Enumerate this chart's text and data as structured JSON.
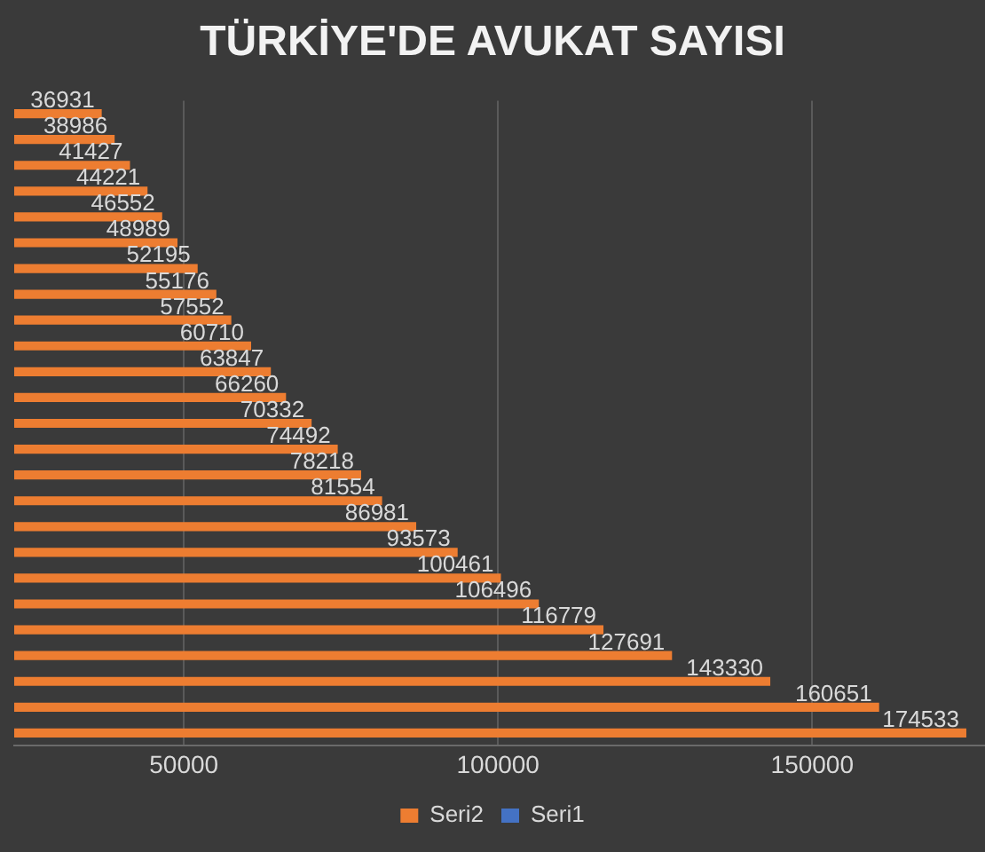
{
  "chart_data": {
    "type": "bar",
    "orientation": "horizontal",
    "title": "TÜRKİYE'DE AVUKAT SAYISI",
    "categories": [
      null,
      null,
      null,
      null,
      null,
      null,
      null,
      null,
      null,
      null,
      null,
      null,
      null,
      null,
      null,
      null,
      null,
      null,
      null,
      null,
      null,
      null,
      null,
      null,
      null
    ],
    "series": [
      {
        "name": "Seri2",
        "color": "#ed7d31",
        "values": [
          36931,
          38986,
          41427,
          44221,
          46552,
          48989,
          52195,
          55176,
          57552,
          60710,
          63847,
          66260,
          70332,
          74492,
          78218,
          81554,
          86981,
          93573,
          100461,
          106496,
          116779,
          127691,
          143330,
          160651,
          174533
        ]
      },
      {
        "name": "Seri1",
        "color": "#4472c4",
        "values": [
          null,
          null,
          null,
          null,
          null,
          null,
          null,
          null,
          null,
          null,
          null,
          null,
          null,
          null,
          null,
          null,
          null,
          null,
          null,
          null,
          null,
          null,
          null,
          null,
          null
        ]
      }
    ],
    "xlim": [
      23000,
      177500
    ],
    "xticks": [
      50000,
      100000,
      150000
    ],
    "grid": "x",
    "legend": "bottom",
    "data_labels": true,
    "tick_labels": "x"
  }
}
